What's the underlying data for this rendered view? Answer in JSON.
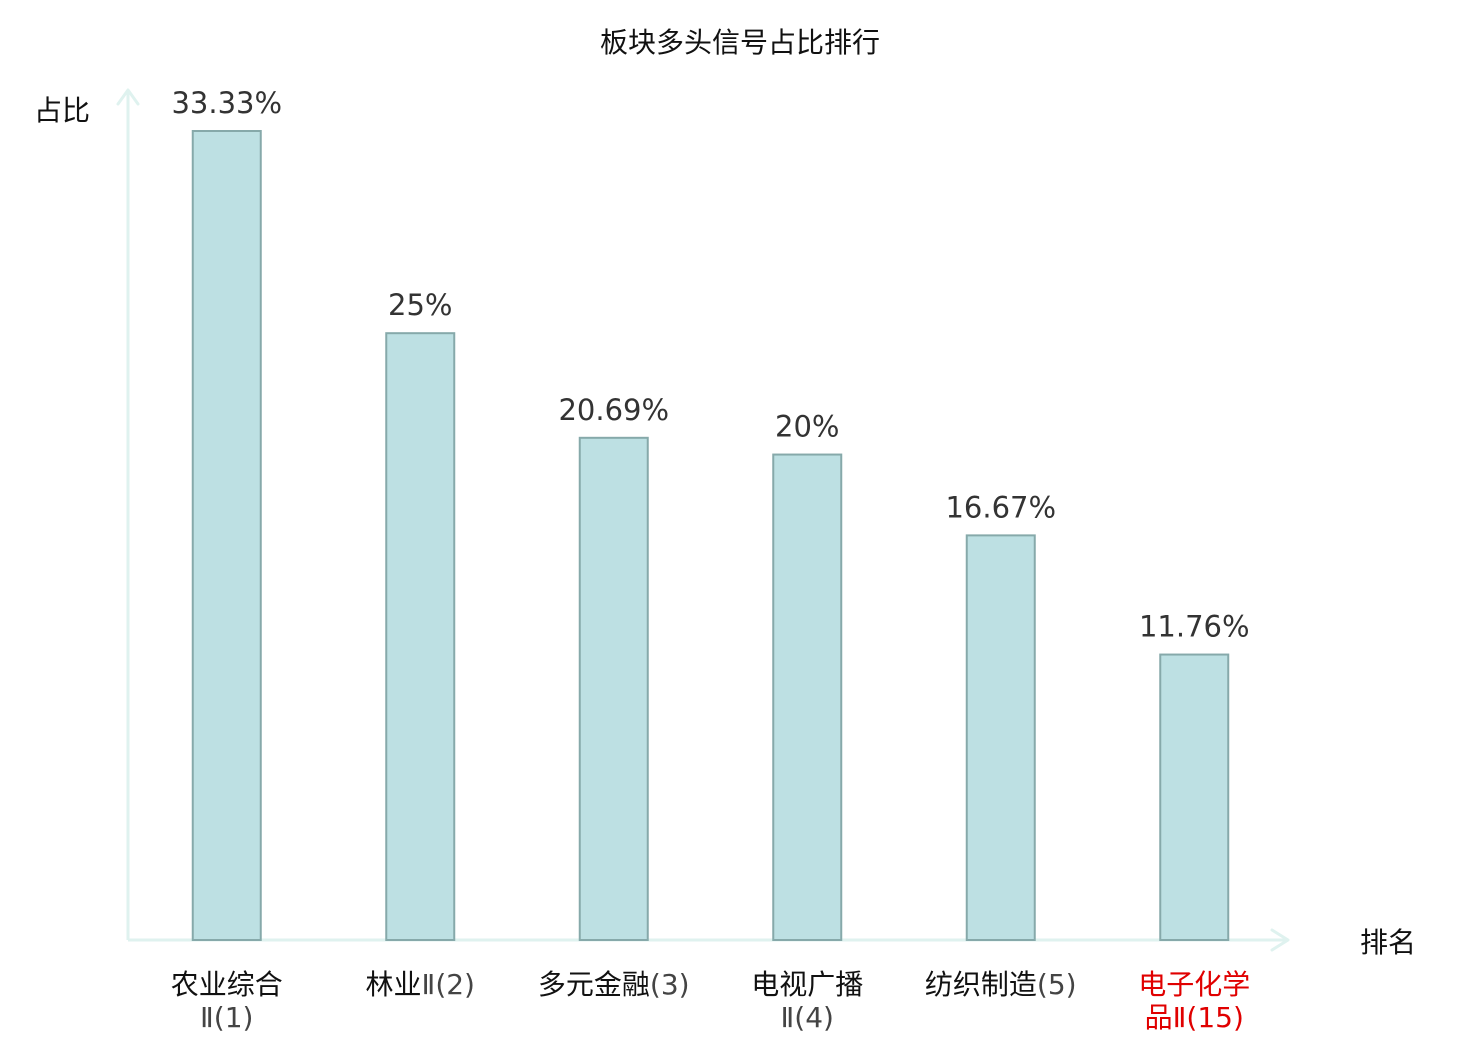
{
  "chart_data": {
    "type": "bar",
    "title": "板块多头信号占比排行",
    "ylabel": "占比",
    "xlabel": "排名",
    "ylim": [
      0,
      35
    ],
    "grid": false,
    "categories": [
      {
        "name_lines": [
          "农业综合"
        ],
        "rank_line": "Ⅱ(1)",
        "highlight": false
      },
      {
        "name_lines": [
          "林业"
        ],
        "rank_line": "Ⅱ(2)",
        "highlight": false,
        "inline": true
      },
      {
        "name_lines": [
          "多元金融"
        ],
        "rank_line": "(3)",
        "highlight": false,
        "inline": true
      },
      {
        "name_lines": [
          "电视广播"
        ],
        "rank_line": "Ⅱ(4)",
        "highlight": false
      },
      {
        "name_lines": [
          "纺织制造"
        ],
        "rank_line": "(5)",
        "highlight": false,
        "inline": true
      },
      {
        "name_lines": [
          "电子化学",
          "品"
        ],
        "rank_line": "Ⅱ(15)",
        "highlight": true,
        "rank_inline_last": true
      }
    ],
    "values": [
      33.33,
      25,
      20.69,
      20,
      16.67,
      11.76
    ],
    "value_labels": [
      "33.33%",
      "25%",
      "20.69%",
      "20%",
      "16.67%",
      "11.76%"
    ],
    "colors": {
      "bar_fill": "#bde0e3",
      "bar_stroke": "#86a9aa",
      "axis": "#dff2ef",
      "highlight_text": "#e00000"
    }
  }
}
